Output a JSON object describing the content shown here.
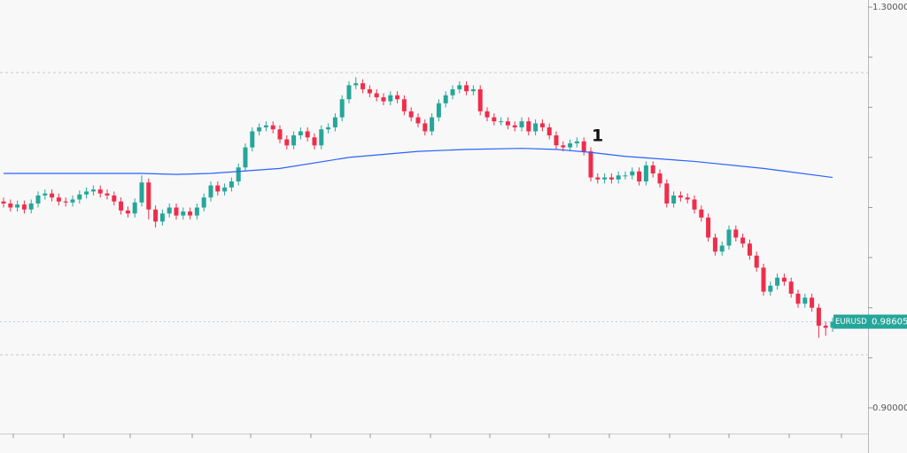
{
  "chart_data": {
    "type": "candlestick",
    "symbol": "EURUSD",
    "annotation": "1",
    "up_color": "#26a69a",
    "down_color": "#ef2d4b",
    "ylim": [
      0.8744,
      1.3071
    ],
    "yticks": [
      {
        "value": 1.3,
        "label": "1.30000"
      },
      {
        "value": 0.9,
        "label": "0.90000"
      }
    ],
    "yminor_ticks": [
      1.25,
      1.2,
      1.15,
      1.1,
      1.05,
      1.0,
      0.95
    ],
    "hlines": [
      1.2347,
      0.953
    ],
    "open": [
      1.106,
      1.104,
      1.1,
      1.103,
      1.098,
      1.104,
      1.112,
      1.114,
      1.11,
      1.106,
      1.105,
      1.108,
      1.113,
      1.116,
      1.118,
      1.114,
      1.112,
      1.106,
      1.097,
      1.094,
      1.105,
      1.125,
      1.098,
      1.086,
      1.094,
      1.1,
      1.092,
      1.096,
      1.092,
      1.1,
      1.11,
      1.122,
      1.116,
      1.12,
      1.126,
      1.14,
      1.16,
      1.176,
      1.18,
      1.182,
      1.178,
      1.168,
      1.162,
      1.172,
      1.176,
      1.17,
      1.162,
      1.178,
      1.18,
      1.19,
      1.208,
      1.222,
      1.224,
      1.218,
      1.214,
      1.21,
      1.206,
      1.212,
      1.208,
      1.196,
      1.19,
      1.184,
      1.176,
      1.19,
      1.204,
      1.212,
      1.218,
      1.222,
      1.216,
      1.218,
      1.196,
      1.19,
      1.186,
      1.186,
      1.182,
      1.18,
      1.186,
      1.176,
      1.184,
      1.18,
      1.172,
      1.162,
      1.16,
      1.164,
      1.166,
      1.156,
      1.13,
      1.128,
      1.13,
      1.128,
      1.132,
      1.132,
      1.136,
      1.126,
      1.142,
      1.134,
      1.124,
      1.104,
      1.112,
      1.11,
      1.108,
      1.098,
      1.09,
      1.07,
      1.056,
      1.062,
      1.078,
      1.07,
      1.064,
      1.052,
      1.04,
      1.016,
      1.022,
      1.03,
      1.026,
      1.014,
      1.004,
      1.01,
      1.0,
      0.982,
      0.98
    ],
    "high": [
      1.11,
      1.108,
      1.107,
      1.107,
      1.108,
      1.116,
      1.118,
      1.118,
      1.114,
      1.11,
      1.112,
      1.117,
      1.12,
      1.122,
      1.122,
      1.118,
      1.116,
      1.11,
      1.101,
      1.109,
      1.132,
      1.129,
      1.102,
      1.098,
      1.104,
      1.104,
      1.1,
      1.1,
      1.104,
      1.114,
      1.126,
      1.126,
      1.124,
      1.13,
      1.144,
      1.164,
      1.18,
      1.184,
      1.186,
      1.186,
      1.182,
      1.172,
      1.176,
      1.18,
      1.18,
      1.174,
      1.182,
      1.184,
      1.194,
      1.212,
      1.226,
      1.23,
      1.228,
      1.222,
      1.218,
      1.214,
      1.216,
      1.216,
      1.212,
      1.2,
      1.194,
      1.188,
      1.194,
      1.208,
      1.216,
      1.222,
      1.226,
      1.226,
      1.222,
      1.222,
      1.2,
      1.194,
      1.19,
      1.19,
      1.186,
      1.19,
      1.19,
      1.188,
      1.188,
      1.184,
      1.176,
      1.166,
      1.168,
      1.17,
      1.17,
      1.16,
      1.134,
      1.134,
      1.134,
      1.136,
      1.136,
      1.14,
      1.14,
      1.146,
      1.146,
      1.138,
      1.128,
      1.116,
      1.116,
      1.114,
      1.112,
      1.102,
      1.094,
      1.074,
      1.066,
      1.082,
      1.082,
      1.074,
      1.068,
      1.056,
      1.044,
      1.026,
      1.034,
      1.034,
      1.03,
      1.018,
      1.014,
      1.014,
      1.004,
      0.986,
      0.99
    ],
    "low": [
      1.1,
      1.096,
      1.096,
      1.094,
      1.094,
      1.1,
      1.108,
      1.106,
      1.102,
      1.101,
      1.101,
      1.104,
      1.109,
      1.112,
      1.11,
      1.108,
      1.102,
      1.093,
      1.09,
      1.09,
      1.101,
      1.088,
      1.08,
      1.082,
      1.09,
      1.088,
      1.088,
      1.088,
      1.088,
      1.096,
      1.106,
      1.112,
      1.112,
      1.116,
      1.122,
      1.136,
      1.156,
      1.172,
      1.176,
      1.174,
      1.164,
      1.158,
      1.158,
      1.168,
      1.166,
      1.158,
      1.158,
      1.174,
      1.176,
      1.186,
      1.204,
      1.218,
      1.214,
      1.21,
      1.206,
      1.202,
      1.202,
      1.204,
      1.192,
      1.186,
      1.18,
      1.172,
      1.172,
      1.186,
      1.2,
      1.208,
      1.214,
      1.212,
      1.212,
      1.192,
      1.186,
      1.182,
      1.182,
      1.178,
      1.176,
      1.176,
      1.172,
      1.172,
      1.176,
      1.168,
      1.158,
      1.156,
      1.156,
      1.16,
      1.152,
      1.126,
      1.124,
      1.124,
      1.124,
      1.124,
      1.128,
      1.128,
      1.122,
      1.122,
      1.13,
      1.12,
      1.1,
      1.1,
      1.106,
      1.104,
      1.094,
      1.086,
      1.066,
      1.052,
      1.052,
      1.058,
      1.066,
      1.06,
      1.048,
      1.036,
      1.012,
      1.012,
      1.018,
      1.022,
      1.01,
      1.0,
      1.0,
      0.996,
      0.97,
      0.972,
      0.976
    ],
    "close": [
      1.104,
      1.1,
      1.103,
      1.098,
      1.104,
      1.112,
      1.114,
      1.11,
      1.106,
      1.105,
      1.108,
      1.113,
      1.116,
      1.118,
      1.114,
      1.112,
      1.106,
      1.097,
      1.094,
      1.105,
      1.125,
      1.098,
      1.086,
      1.094,
      1.1,
      1.092,
      1.096,
      1.092,
      1.1,
      1.11,
      1.122,
      1.116,
      1.12,
      1.126,
      1.14,
      1.16,
      1.176,
      1.18,
      1.182,
      1.178,
      1.168,
      1.162,
      1.172,
      1.176,
      1.17,
      1.162,
      1.178,
      1.18,
      1.19,
      1.208,
      1.222,
      1.224,
      1.218,
      1.214,
      1.21,
      1.206,
      1.212,
      1.208,
      1.196,
      1.19,
      1.184,
      1.176,
      1.19,
      1.204,
      1.212,
      1.218,
      1.222,
      1.216,
      1.218,
      1.196,
      1.19,
      1.186,
      1.186,
      1.182,
      1.18,
      1.186,
      1.176,
      1.184,
      1.18,
      1.172,
      1.162,
      1.16,
      1.164,
      1.166,
      1.156,
      1.13,
      1.128,
      1.13,
      1.128,
      1.132,
      1.132,
      1.136,
      1.126,
      1.142,
      1.134,
      1.124,
      1.104,
      1.112,
      1.11,
      1.108,
      1.098,
      1.09,
      1.07,
      1.056,
      1.062,
      1.078,
      1.07,
      1.064,
      1.052,
      1.04,
      1.016,
      1.022,
      1.03,
      1.026,
      1.014,
      1.004,
      1.01,
      1.0,
      0.982,
      0.98,
      0.98605
    ],
    "moving_average": {
      "color": "#2962ff",
      "x": [
        0,
        10,
        20,
        25,
        30,
        40,
        50,
        60,
        67,
        75,
        80,
        85,
        90,
        100,
        110,
        120
      ],
      "values": [
        1.134,
        1.134,
        1.134,
        1.133,
        1.134,
        1.139,
        1.15,
        1.156,
        1.158,
        1.159,
        1.158,
        1.155,
        1.151,
        1.146,
        1.139,
        1.13
      ]
    }
  }
}
